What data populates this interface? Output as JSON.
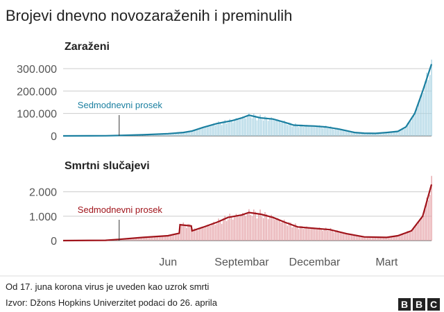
{
  "title": "Brojevi dnevno novozaraženih i preminulih",
  "footnote": "Od 17. juna korona virus je uveden kao uzrok smrti",
  "source": "Izvor: Džons Hopkins Univerzitet podaci do 26. aprila",
  "logo_text": "BBC",
  "colors": {
    "cases_line": "#1a7fa0",
    "cases_bar": "#a9d3e3",
    "deaths_line": "#a0141b",
    "deaths_bar": "#e5a3a8",
    "grid": "#cccccc",
    "axis_text": "#555555",
    "text": "#222222"
  },
  "x_axis": {
    "range": [
      "2020-01-22",
      "2021-04-26"
    ],
    "ticks": [
      {
        "date": "2020-06-01",
        "label": "Jun"
      },
      {
        "date": "2020-09-01",
        "label": "Septembar"
      },
      {
        "date": "2020-12-01",
        "label": "Decembar"
      },
      {
        "date": "2021-03-01",
        "label": "Mart"
      }
    ]
  },
  "chart_data": [
    {
      "type": "area",
      "title": "Zaraženi",
      "annotation": {
        "text": "Sedmodnevni prosek",
        "date": "2020-04-01"
      },
      "ylim": [
        0,
        340000
      ],
      "yticks": [
        {
          "value": 0,
          "label": "0"
        },
        {
          "value": 100000,
          "label": "100.000"
        },
        {
          "value": 200000,
          "label": "200.000"
        },
        {
          "value": 300000,
          "label": "300.000"
        }
      ],
      "series": [
        {
          "x": [
            "2020-01-22",
            "2020-03-15",
            "2020-04-01",
            "2020-05-01",
            "2020-06-01",
            "2020-06-20",
            "2020-07-01",
            "2020-07-15",
            "2020-08-01",
            "2020-08-20",
            "2020-09-01",
            "2020-09-10",
            "2020-09-25",
            "2020-10-10",
            "2020-10-25",
            "2020-11-05",
            "2020-11-20",
            "2020-12-01",
            "2020-12-15",
            "2021-01-01",
            "2021-01-20",
            "2021-02-01",
            "2021-02-15",
            "2021-03-01",
            "2021-03-15",
            "2021-03-25",
            "2021-04-05",
            "2021-04-15",
            "2021-04-26"
          ],
          "values": [
            0,
            500,
            2000,
            5000,
            10000,
            15000,
            22000,
            38000,
            55000,
            68000,
            80000,
            92000,
            80000,
            75000,
            60000,
            48000,
            45000,
            44000,
            40000,
            30000,
            15000,
            12000,
            11000,
            15000,
            20000,
            40000,
            100000,
            200000,
            320000
          ]
        }
      ]
    },
    {
      "type": "area",
      "title": "Smrtni slučajevi",
      "annotation": {
        "text": "Sedmodnevni prosek",
        "date": "2020-04-01"
      },
      "ylim": [
        0,
        2700
      ],
      "yticks": [
        {
          "value": 0,
          "label": "0"
        },
        {
          "value": 1000,
          "label": "1.000"
        },
        {
          "value": 2000,
          "label": "2.000"
        }
      ],
      "series": [
        {
          "x": [
            "2020-01-22",
            "2020-03-15",
            "2020-04-01",
            "2020-05-01",
            "2020-06-01",
            "2020-06-15",
            "2020-06-16",
            "2020-06-30",
            "2020-07-01",
            "2020-07-15",
            "2020-08-01",
            "2020-08-15",
            "2020-09-01",
            "2020-09-10",
            "2020-09-25",
            "2020-10-10",
            "2020-10-25",
            "2020-11-10",
            "2020-12-01",
            "2020-12-20",
            "2021-01-10",
            "2021-02-01",
            "2021-03-01",
            "2021-03-15",
            "2021-04-01",
            "2021-04-15",
            "2021-04-26"
          ],
          "values": [
            0,
            10,
            50,
            130,
            200,
            300,
            650,
            600,
            400,
            550,
            750,
            950,
            1050,
            1150,
            1080,
            950,
            750,
            560,
            500,
            450,
            280,
            150,
            130,
            200,
            400,
            1000,
            2300
          ]
        }
      ]
    }
  ]
}
